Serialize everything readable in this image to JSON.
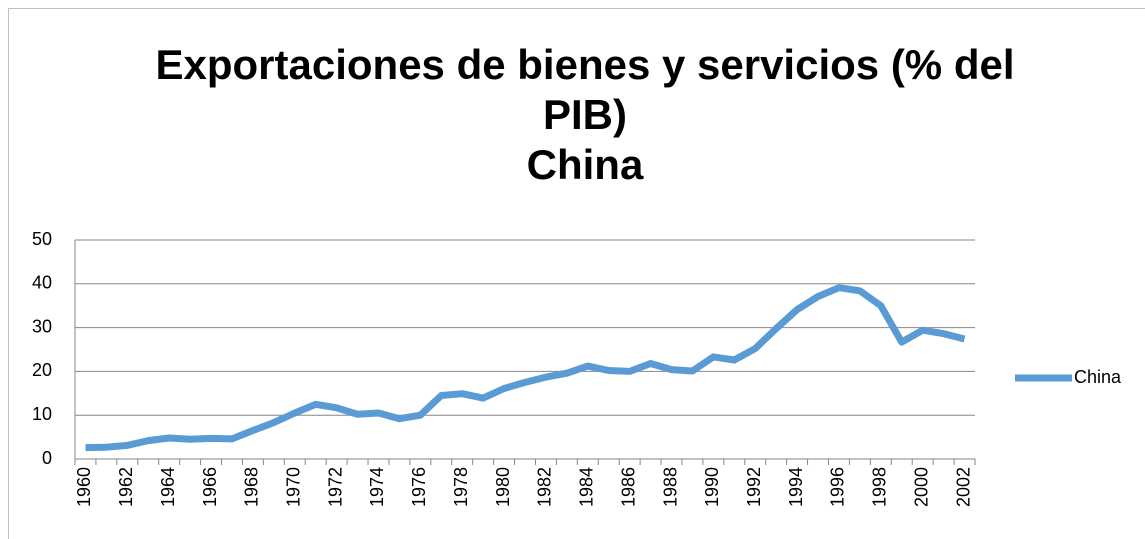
{
  "chart_data": {
    "type": "line",
    "title": "Exportaciones de bienes y servicios (% del PIB)",
    "subtitle": "China",
    "categories": [
      "1960",
      null,
      "1962",
      null,
      "1964",
      null,
      "1966",
      null,
      "1968",
      null,
      "1970",
      null,
      "1972",
      null,
      "1974",
      null,
      "1976",
      null,
      "1978",
      null,
      "1980",
      null,
      "1982",
      null,
      "1984",
      null,
      "1986",
      null,
      "1988",
      null,
      "1990",
      null,
      "1992",
      null,
      "1994",
      null,
      "1996",
      null,
      "1998",
      null,
      "2000",
      null,
      "2002"
    ],
    "series": [
      {
        "name": "China",
        "color": "#5b9bd5",
        "values": [
          2.6,
          2.7,
          3.1,
          4.2,
          4.8,
          4.5,
          4.7,
          4.6,
          6.5,
          8.3,
          10.5,
          12.5,
          11.7,
          10.2,
          10.5,
          9.2,
          10.0,
          14.5,
          14.9,
          13.9,
          16.1,
          17.5,
          18.7,
          19.6,
          21.2,
          20.2,
          20.0,
          21.8,
          20.4,
          20.1,
          23.3,
          22.6,
          25.2,
          29.8,
          34.1,
          37.1,
          39.1,
          38.4,
          35.0,
          26.7,
          29.4,
          28.6,
          27.4
        ]
      }
    ],
    "ylim": [
      0,
      50
    ],
    "yticks": [
      0,
      10,
      20,
      30,
      40,
      50
    ],
    "grid": true,
    "legend": "right"
  }
}
